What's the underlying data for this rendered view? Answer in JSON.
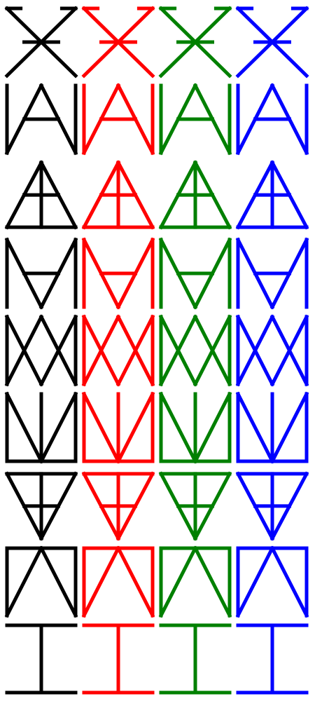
{
  "colors": [
    "#000000",
    "#ff0000",
    "#008000",
    "#0000ff"
  ],
  "color_names": [
    "black",
    "red",
    "green",
    "blue"
  ],
  "glyphs": [
    "x-crossbar-glyph",
    "a-with-left-bar-glyph",
    "triangle-cross-glyph",
    "m-v-glyph",
    "double-x-glyph",
    "v-with-stem-glyph",
    "inverted-triangle-cross-glyph",
    "box-n-glyph",
    "t-bar-glyph"
  ]
}
